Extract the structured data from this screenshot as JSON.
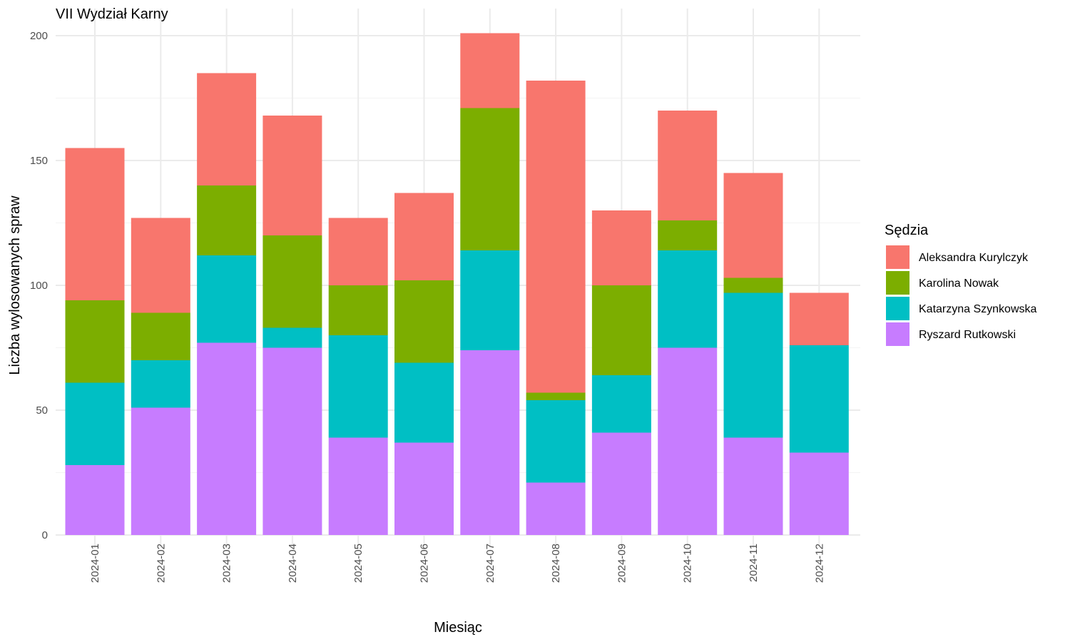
{
  "chart_data": {
    "type": "bar",
    "stacked": true,
    "title": "VII Wydział Karny",
    "xlabel": "Miesiąc",
    "ylabel": "Liczba wylosowanych spraw",
    "ylim": [
      0,
      211
    ],
    "yticks": [
      0,
      50,
      100,
      150,
      200
    ],
    "grid": true,
    "legend_position": "right",
    "legend_title": "Sędzia",
    "categories": [
      "2024-01",
      "2024-02",
      "2024-03",
      "2024-04",
      "2024-05",
      "2024-06",
      "2024-07",
      "2024-08",
      "2024-09",
      "2024-10",
      "2024-11",
      "2024-12"
    ],
    "series": [
      {
        "name": "Ryszard Rutkowski",
        "color": "#C77CFF",
        "values": [
          28,
          51,
          77,
          75,
          39,
          37,
          74,
          21,
          41,
          75,
          39,
          33
        ]
      },
      {
        "name": "Katarzyna Szynkowska",
        "color": "#00BFC4",
        "values": [
          33,
          19,
          35,
          8,
          41,
          32,
          40,
          33,
          23,
          39,
          58,
          43
        ]
      },
      {
        "name": "Karolina Nowak",
        "color": "#7CAE00",
        "values": [
          33,
          19,
          28,
          37,
          20,
          33,
          57,
          3,
          36,
          12,
          6,
          0
        ]
      },
      {
        "name": "Aleksandra Kurylczyk",
        "color": "#F8766D",
        "values": [
          61,
          38,
          45,
          48,
          27,
          35,
          30,
          125,
          30,
          44,
          42,
          21
        ]
      }
    ],
    "legend_order": [
      "Aleksandra Kurylczyk",
      "Karolina Nowak",
      "Katarzyna Szynkowska",
      "Ryszard Rutkowski"
    ]
  }
}
